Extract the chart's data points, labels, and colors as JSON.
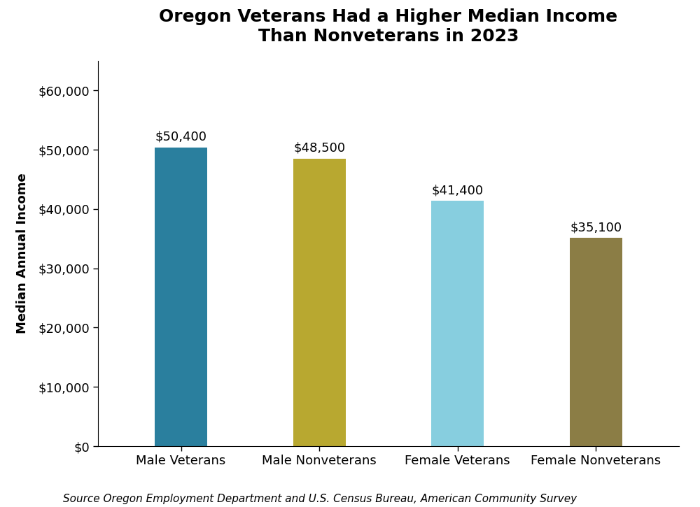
{
  "title": "Oregon Veterans Had a Higher Median Income\nThan Nonveterans in 2023",
  "categories": [
    "Male Veterans",
    "Male Nonveterans",
    "Female Veterans",
    "Female Nonveterans"
  ],
  "values": [
    50400,
    48500,
    41400,
    35100
  ],
  "bar_colors": [
    "#2a7f9e",
    "#b8a830",
    "#87cedf",
    "#8b7d45"
  ],
  "bar_labels": [
    "$50,400",
    "$48,500",
    "$41,400",
    "$35,100"
  ],
  "ylabel": "Median Annual Income",
  "ylim": [
    0,
    65000
  ],
  "yticks": [
    0,
    10000,
    20000,
    30000,
    40000,
    50000,
    60000
  ],
  "ytick_labels": [
    "$0",
    "$10,000",
    "$20,000",
    "$30,000",
    "$40,000",
    "$50,000",
    "$60,000"
  ],
  "source_text": "Source Oregon Employment Department and U.S. Census Bureau, American Community Survey",
  "title_fontsize": 18,
  "label_fontsize": 13,
  "tick_fontsize": 13,
  "bar_label_fontsize": 13,
  "source_fontsize": 11,
  "bar_width": 0.38,
  "background_color": "#ffffff"
}
